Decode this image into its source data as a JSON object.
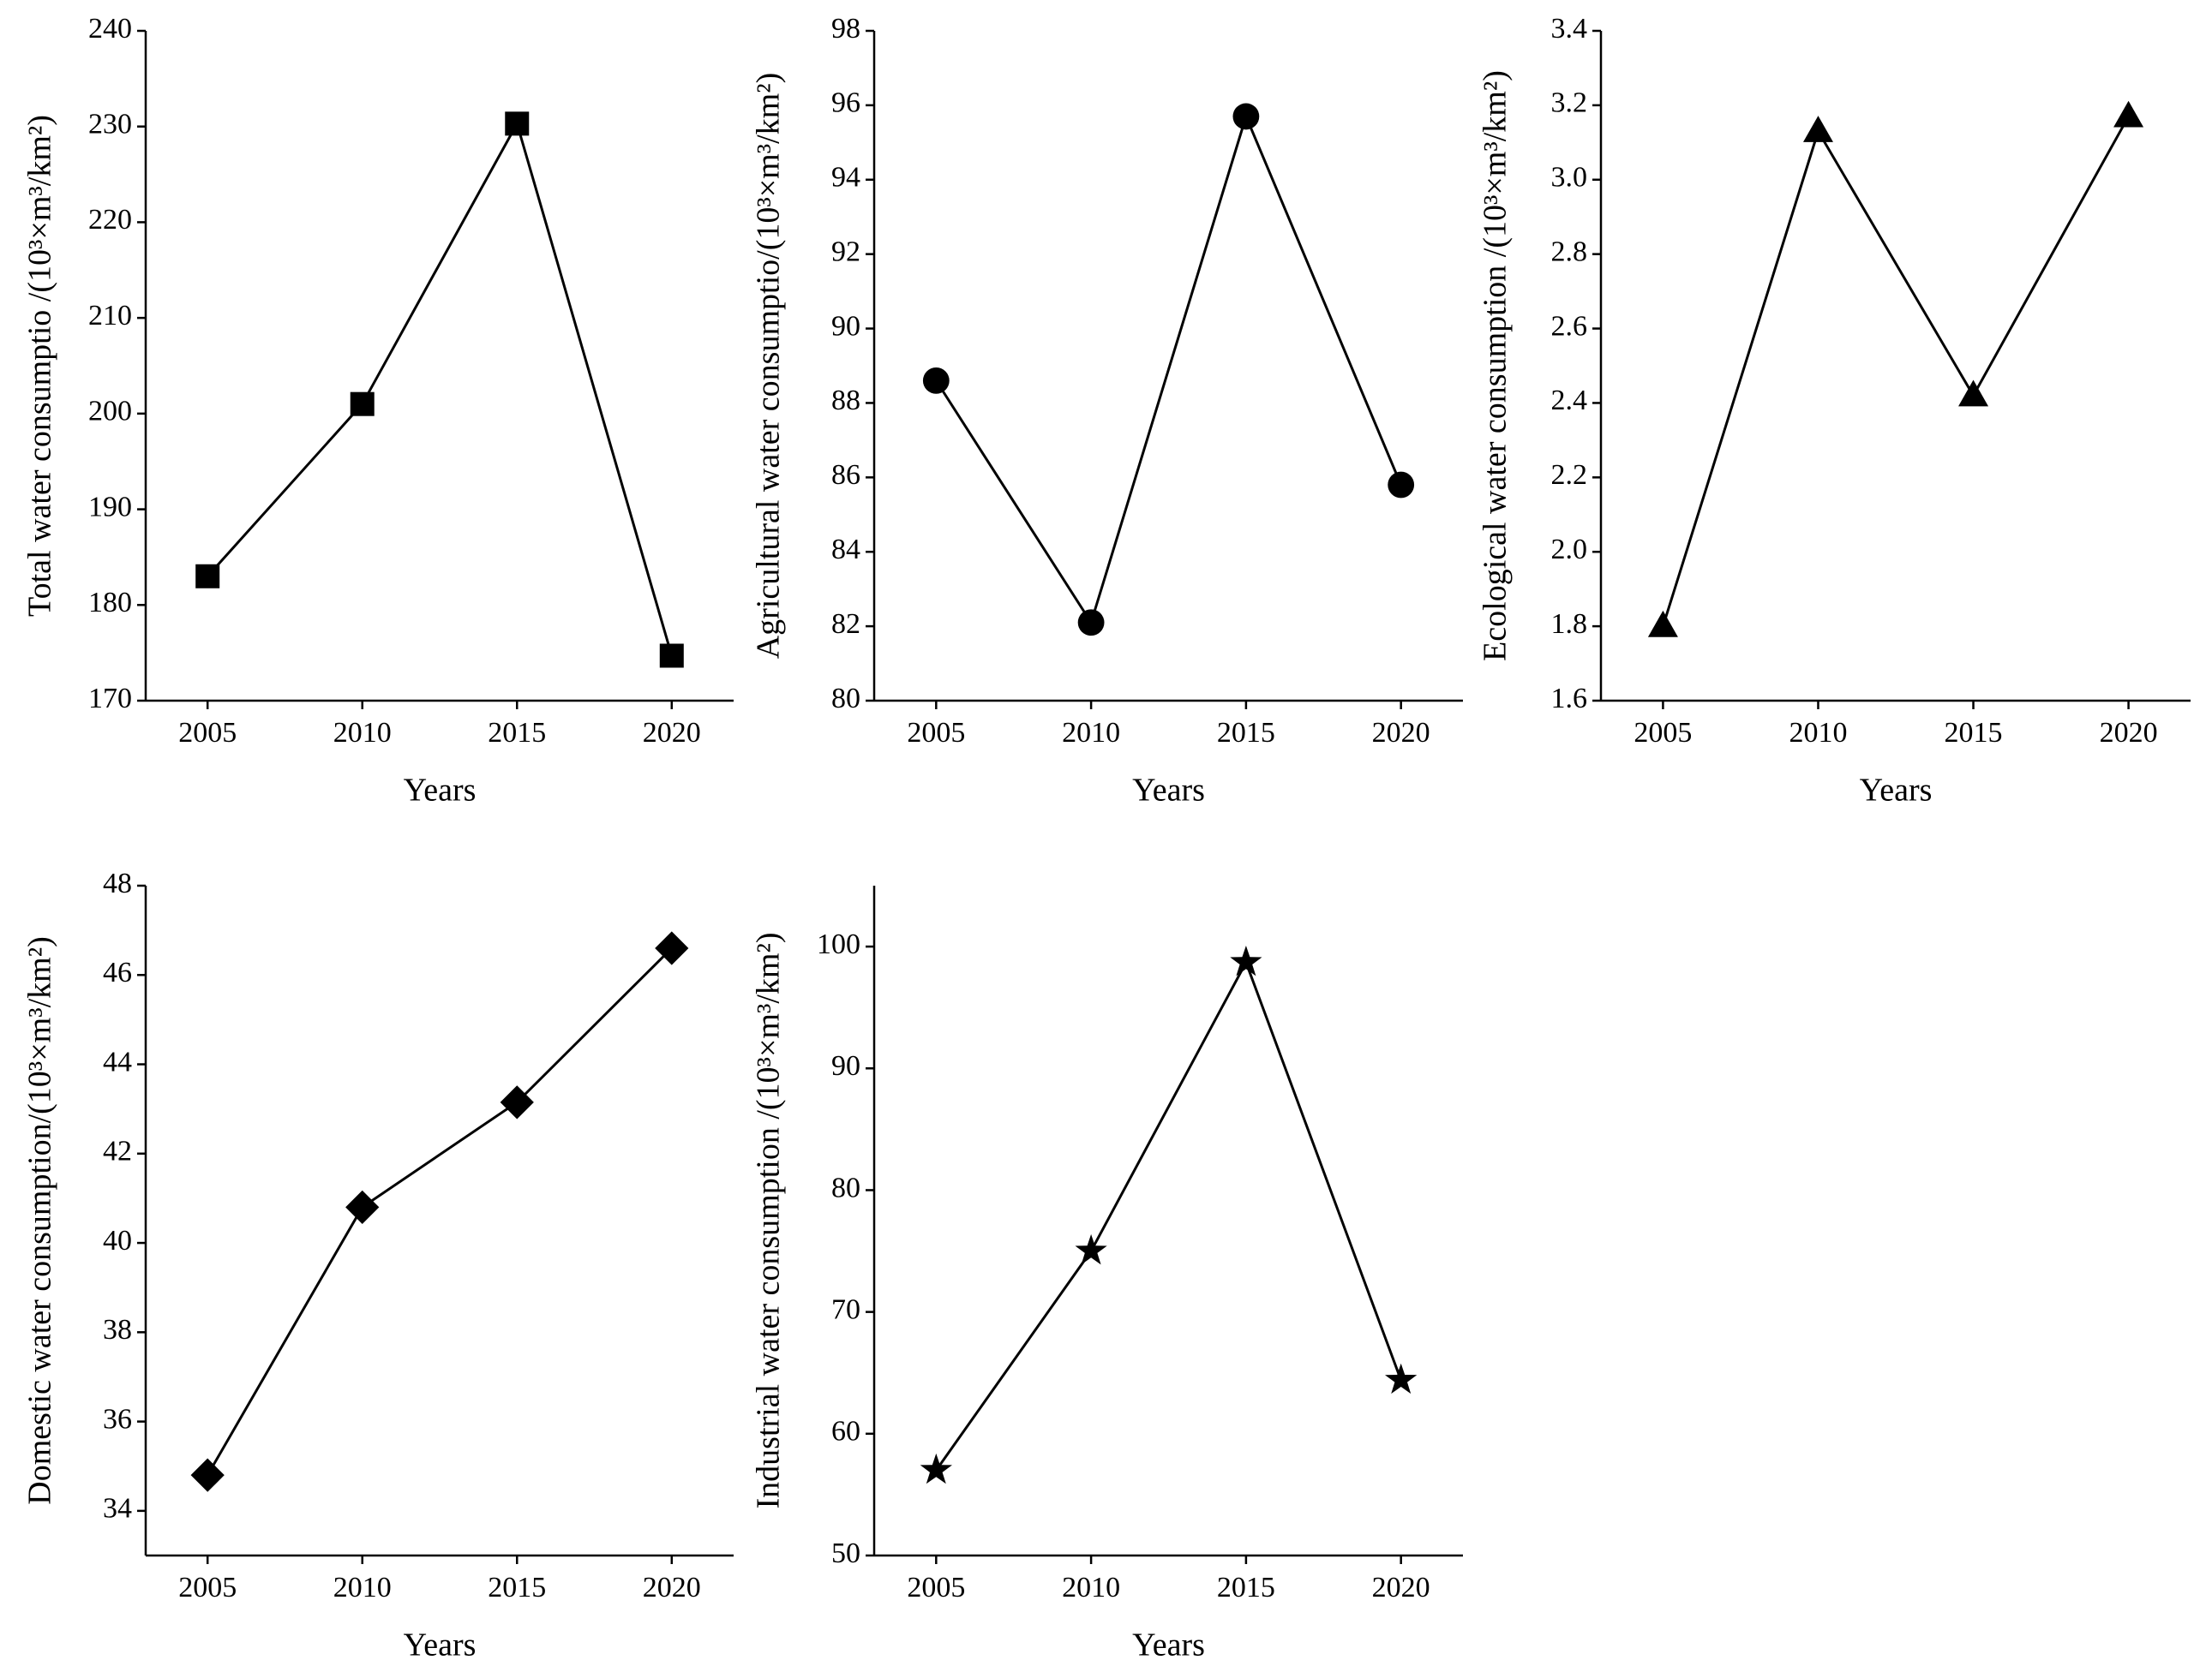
{
  "chart_data": [
    {
      "type": "line",
      "marker": "square",
      "color": "#000000",
      "y_label": "Total water consumptio /(10³×m³/km²)",
      "x_label": "Years",
      "categories": [
        "2005",
        "2010",
        "2015",
        "2020"
      ],
      "values": [
        183,
        201,
        230.3,
        174.7
      ],
      "ylim": [
        170,
        240
      ],
      "yticks": [
        170,
        180,
        190,
        200,
        210,
        220,
        230,
        240
      ]
    },
    {
      "type": "line",
      "marker": "circle",
      "color": "#000000",
      "y_label": "Agricultural water consumptio/(10³×m³/km²)",
      "x_label": "Years",
      "categories": [
        "2005",
        "2010",
        "2015",
        "2020"
      ],
      "values": [
        88.6,
        82.1,
        95.7,
        85.8
      ],
      "ylim": [
        80,
        98
      ],
      "yticks": [
        80,
        82,
        84,
        86,
        88,
        90,
        92,
        94,
        96,
        98
      ]
    },
    {
      "type": "line",
      "marker": "triangle",
      "color": "#000000",
      "y_label": "Ecological water consumption  /(10³×m³/km²)",
      "x_label": "Years",
      "categories": [
        "2005",
        "2010",
        "2015",
        "2020"
      ],
      "values": [
        1.8,
        3.13,
        2.42,
        3.17
      ],
      "ylim": [
        1.6,
        3.4
      ],
      "yticks": [
        1.6,
        1.8,
        {
          "value": 2,
          "label": "2.0"
        },
        2.2,
        2.4,
        2.6,
        2.8,
        {
          "value": 3,
          "label": "3.0"
        },
        3.2,
        3.4
      ]
    },
    {
      "type": "line",
      "marker": "diamond",
      "color": "#000000",
      "y_label": "Domestic water consumption/(10³×m³/km²)",
      "x_label": "Years",
      "categories": [
        "2005",
        "2010",
        "2015",
        "2020"
      ],
      "values": [
        34.8,
        40.8,
        43.15,
        46.6
      ],
      "ylim": [
        33,
        48
      ],
      "yticks": [
        34,
        36,
        38,
        40,
        42,
        44,
        46,
        48
      ]
    },
    {
      "type": "line",
      "marker": "star",
      "color": "#000000",
      "y_label": "Industrial water consumption /(10³×m³/km²)",
      "x_label": "Years",
      "categories": [
        "2005",
        "2010",
        "2015",
        "2020"
      ],
      "values": [
        57,
        75,
        98.7,
        64.4
      ],
      "ylim": [
        50,
        105
      ],
      "yticks": [
        50,
        60,
        70,
        80,
        90,
        100
      ]
    }
  ]
}
